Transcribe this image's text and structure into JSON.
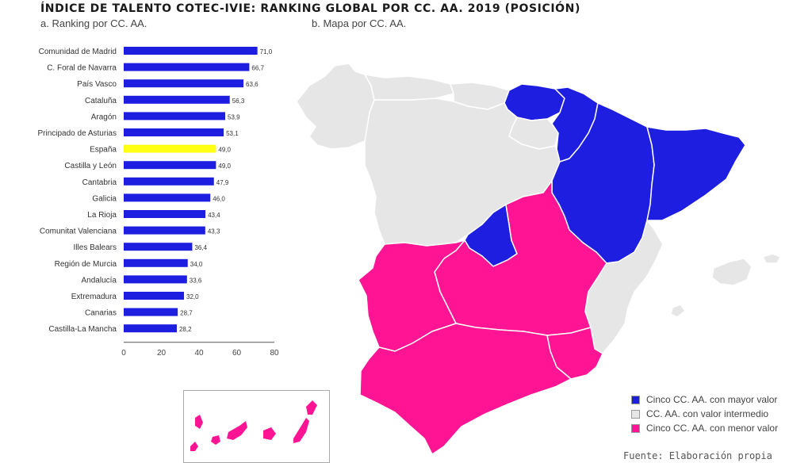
{
  "title": "ÍNDICE DE TALENTO COTEC-IVIE: RANKING GLOBAL POR CC. AA. 2019 (POSICIÓN)",
  "panels": {
    "a": "a. Ranking por CC. AA.",
    "b": "b. Mapa por CC. AA."
  },
  "colors": {
    "high": "#1e1ee0",
    "mid": "#e6e6e6",
    "low": "#ff1493",
    "spain": "#ffff14",
    "border": "#ffffff"
  },
  "chart_data": {
    "type": "bar",
    "orientation": "horizontal",
    "categories": [
      "Comunidad de Madrid",
      "C. Foral de Navarra",
      "País Vasco",
      "Cataluña",
      "Aragón",
      "Principado de Asturias",
      "España",
      "Castilla y León",
      "Cantabria",
      "Galicia",
      "La Rioja",
      "Comunitat Valenciana",
      "Illes Balears",
      "Región de Murcia",
      "Andalucía",
      "Extremadura",
      "Canarias",
      "Castilla-La Mancha"
    ],
    "values": [
      71.0,
      66.7,
      63.6,
      56.3,
      53.9,
      53.1,
      49.0,
      49.0,
      47.9,
      46.0,
      43.4,
      43.3,
      36.4,
      34.0,
      33.6,
      32.0,
      28.7,
      28.2
    ],
    "value_labels": [
      "71,0",
      "66,7",
      "63,6",
      "56,3",
      "53,9",
      "53,1",
      "49,0",
      "49,0",
      "47,9",
      "46,0",
      "43,4",
      "43,3",
      "36,4",
      "34,0",
      "33,6",
      "32,0",
      "28,7",
      "28,2"
    ],
    "highlight": "España",
    "xlim": [
      0,
      80
    ],
    "xticks": [
      0,
      20,
      40,
      60,
      80
    ],
    "grid": false
  },
  "legend": [
    {
      "label": "Cinco CC. AA. con mayor valor",
      "color": "#1e1ee0"
    },
    {
      "label": "CC. AA. con valor intermedio",
      "color": "#e6e6e6"
    },
    {
      "label": "Cinco CC. AA. con menor valor",
      "color": "#ff1493"
    }
  ],
  "source": "Fuente: Elaboración propia"
}
